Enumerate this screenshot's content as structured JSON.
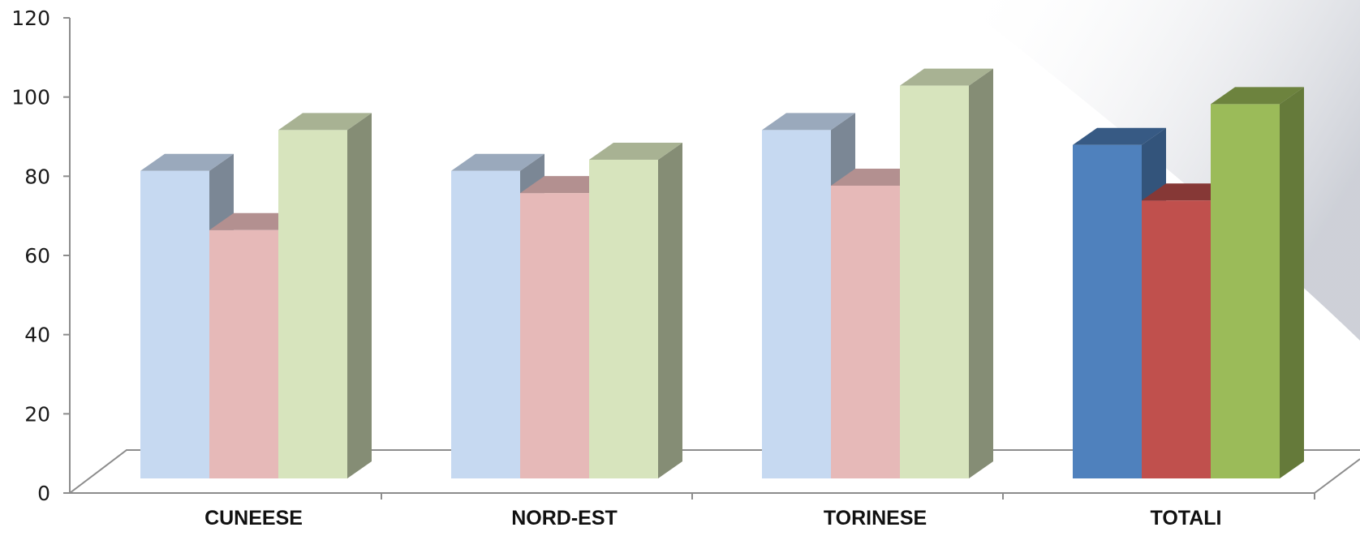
{
  "chart_data": {
    "type": "bar",
    "categories": [
      "CUNEESE",
      "NORD-EST",
      "TORINESE",
      "TOTALI"
    ],
    "series": [
      {
        "values": [
          83,
          83,
          94,
          90
        ],
        "colors": {
          "light": "#c6d9f1",
          "strong": "#4f81bd"
        }
      },
      {
        "values": [
          67,
          77,
          79,
          75
        ],
        "colors": {
          "light": "#e6b9b8",
          "strong": "#c0504d"
        }
      },
      {
        "values": [
          94,
          86,
          106,
          101
        ],
        "colors": {
          "light": "#d7e4bd",
          "strong": "#9bbb59"
        }
      }
    ],
    "highlighted_category": "TOTALI",
    "ylim": [
      0,
      120
    ],
    "yticks": [
      0,
      20,
      40,
      60,
      80,
      100,
      120
    ],
    "grid": false,
    "style": "3d-clustered-column"
  }
}
